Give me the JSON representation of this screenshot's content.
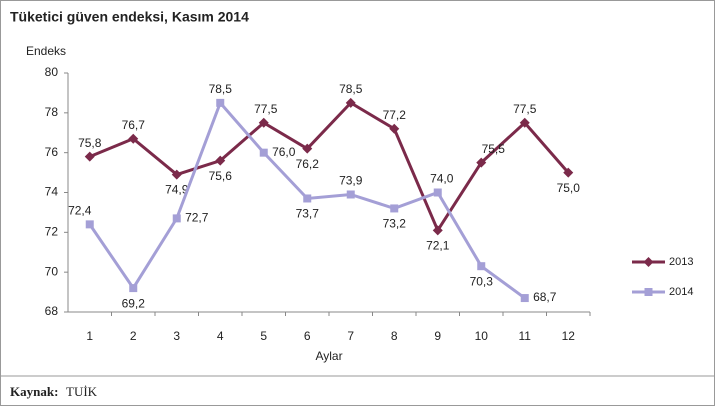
{
  "chart_data": {
    "type": "line",
    "title": "Tüketici güven endeksi, Kasım 2014",
    "y_label": "Endeks",
    "x_label": "Aylar",
    "source_label": "Kaynak:",
    "source": "TUİK",
    "categories": [
      "1",
      "2",
      "3",
      "4",
      "5",
      "6",
      "7",
      "8",
      "9",
      "10",
      "11",
      "12"
    ],
    "series": [
      {
        "name": "2013",
        "color": "#7b2a4a",
        "marker": "diamond",
        "values": [
          75.8,
          76.7,
          74.9,
          75.6,
          77.5,
          76.2,
          78.5,
          77.2,
          72.1,
          75.5,
          77.5,
          75.0
        ],
        "value_labels": [
          "75,8",
          "76,7",
          "74,9",
          "75,6",
          "77,5",
          "76,2",
          "78,5",
          "77,2",
          "72,1",
          "75,5",
          "77,5",
          "75,0"
        ]
      },
      {
        "name": "2014",
        "color": "#a49fd6",
        "marker": "square",
        "values": [
          72.4,
          69.2,
          72.7,
          78.5,
          76.0,
          73.7,
          73.9,
          73.2,
          74.0,
          70.3,
          68.7,
          null
        ],
        "value_labels": [
          "72,4",
          "69,2",
          "72,7",
          "78,5",
          "76,0",
          "73,7",
          "73,9",
          "73,2",
          "74,0",
          "70,3",
          "68,7",
          null
        ]
      }
    ],
    "ylim": [
      68,
      80
    ],
    "yticks": [
      68,
      70,
      72,
      74,
      76,
      78,
      80
    ],
    "grid": false,
    "legend": "right"
  }
}
